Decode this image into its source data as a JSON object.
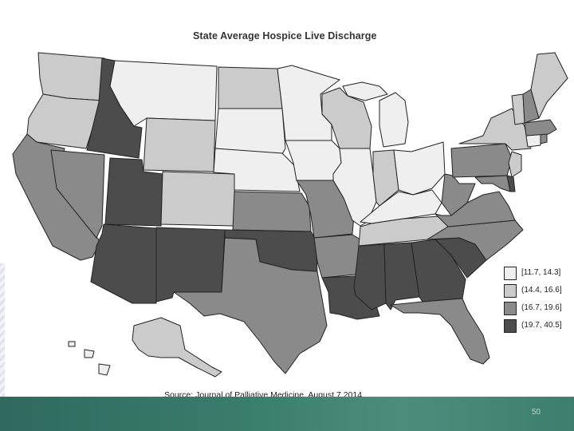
{
  "slide": {
    "page_number": "50",
    "source": "Source: Journal of Palliative Medicine, August 7 2014"
  },
  "map": {
    "title": "State Average Hospice Live Discharge",
    "colors": {
      "lvl1": "#efefef",
      "lvl2": "#cbcbcb",
      "lvl3": "#8a8a8a",
      "lvl4": "#4c4c4c"
    },
    "legend": [
      {
        "label": "[11.7, 14.3]",
        "level": "lvl1"
      },
      {
        "label": "(14.4, 16.6]",
        "level": "lvl2"
      },
      {
        "label": "(16.7, 19.6]",
        "level": "lvl3"
      },
      {
        "label": "(19.7, 40.5]",
        "level": "lvl4"
      }
    ],
    "states": {
      "WA": "lvl2",
      "OR": "lvl2",
      "CA": "lvl3",
      "NV": "lvl3",
      "ID": "lvl4",
      "MT": "lvl1",
      "WY": "lvl2",
      "UT": "lvl4",
      "AZ": "lvl4",
      "CO": "lvl2",
      "NM": "lvl4",
      "ND": "lvl2",
      "SD": "lvl1",
      "NE": "lvl1",
      "KS": "lvl3",
      "OK": "lvl4",
      "TX": "lvl3",
      "MN": "lvl1",
      "IA": "lvl1",
      "MO": "lvl3",
      "AR": "lvl3",
      "LA": "lvl4",
      "WI": "lvl2",
      "IL": "lvl1",
      "MI": "lvl1",
      "IN": "lvl2",
      "OH": "lvl1",
      "KY": "lvl1",
      "TN": "lvl2",
      "MS": "lvl4",
      "AL": "lvl4",
      "GA": "lvl4",
      "FL": "lvl3",
      "SC": "lvl4",
      "NC": "lvl3",
      "VA": "lvl3",
      "WV": "lvl3",
      "PA": "lvl3",
      "NY": "lvl2",
      "ME": "lvl2",
      "VT": "lvl2",
      "NH": "lvl3",
      "MA": "lvl3",
      "CT": "lvl1",
      "NJ": "lvl2",
      "MD": "lvl3",
      "DE": "lvl4",
      "RI": "lvl3",
      "AK": "lvl2",
      "HI": "lvl1"
    }
  }
}
